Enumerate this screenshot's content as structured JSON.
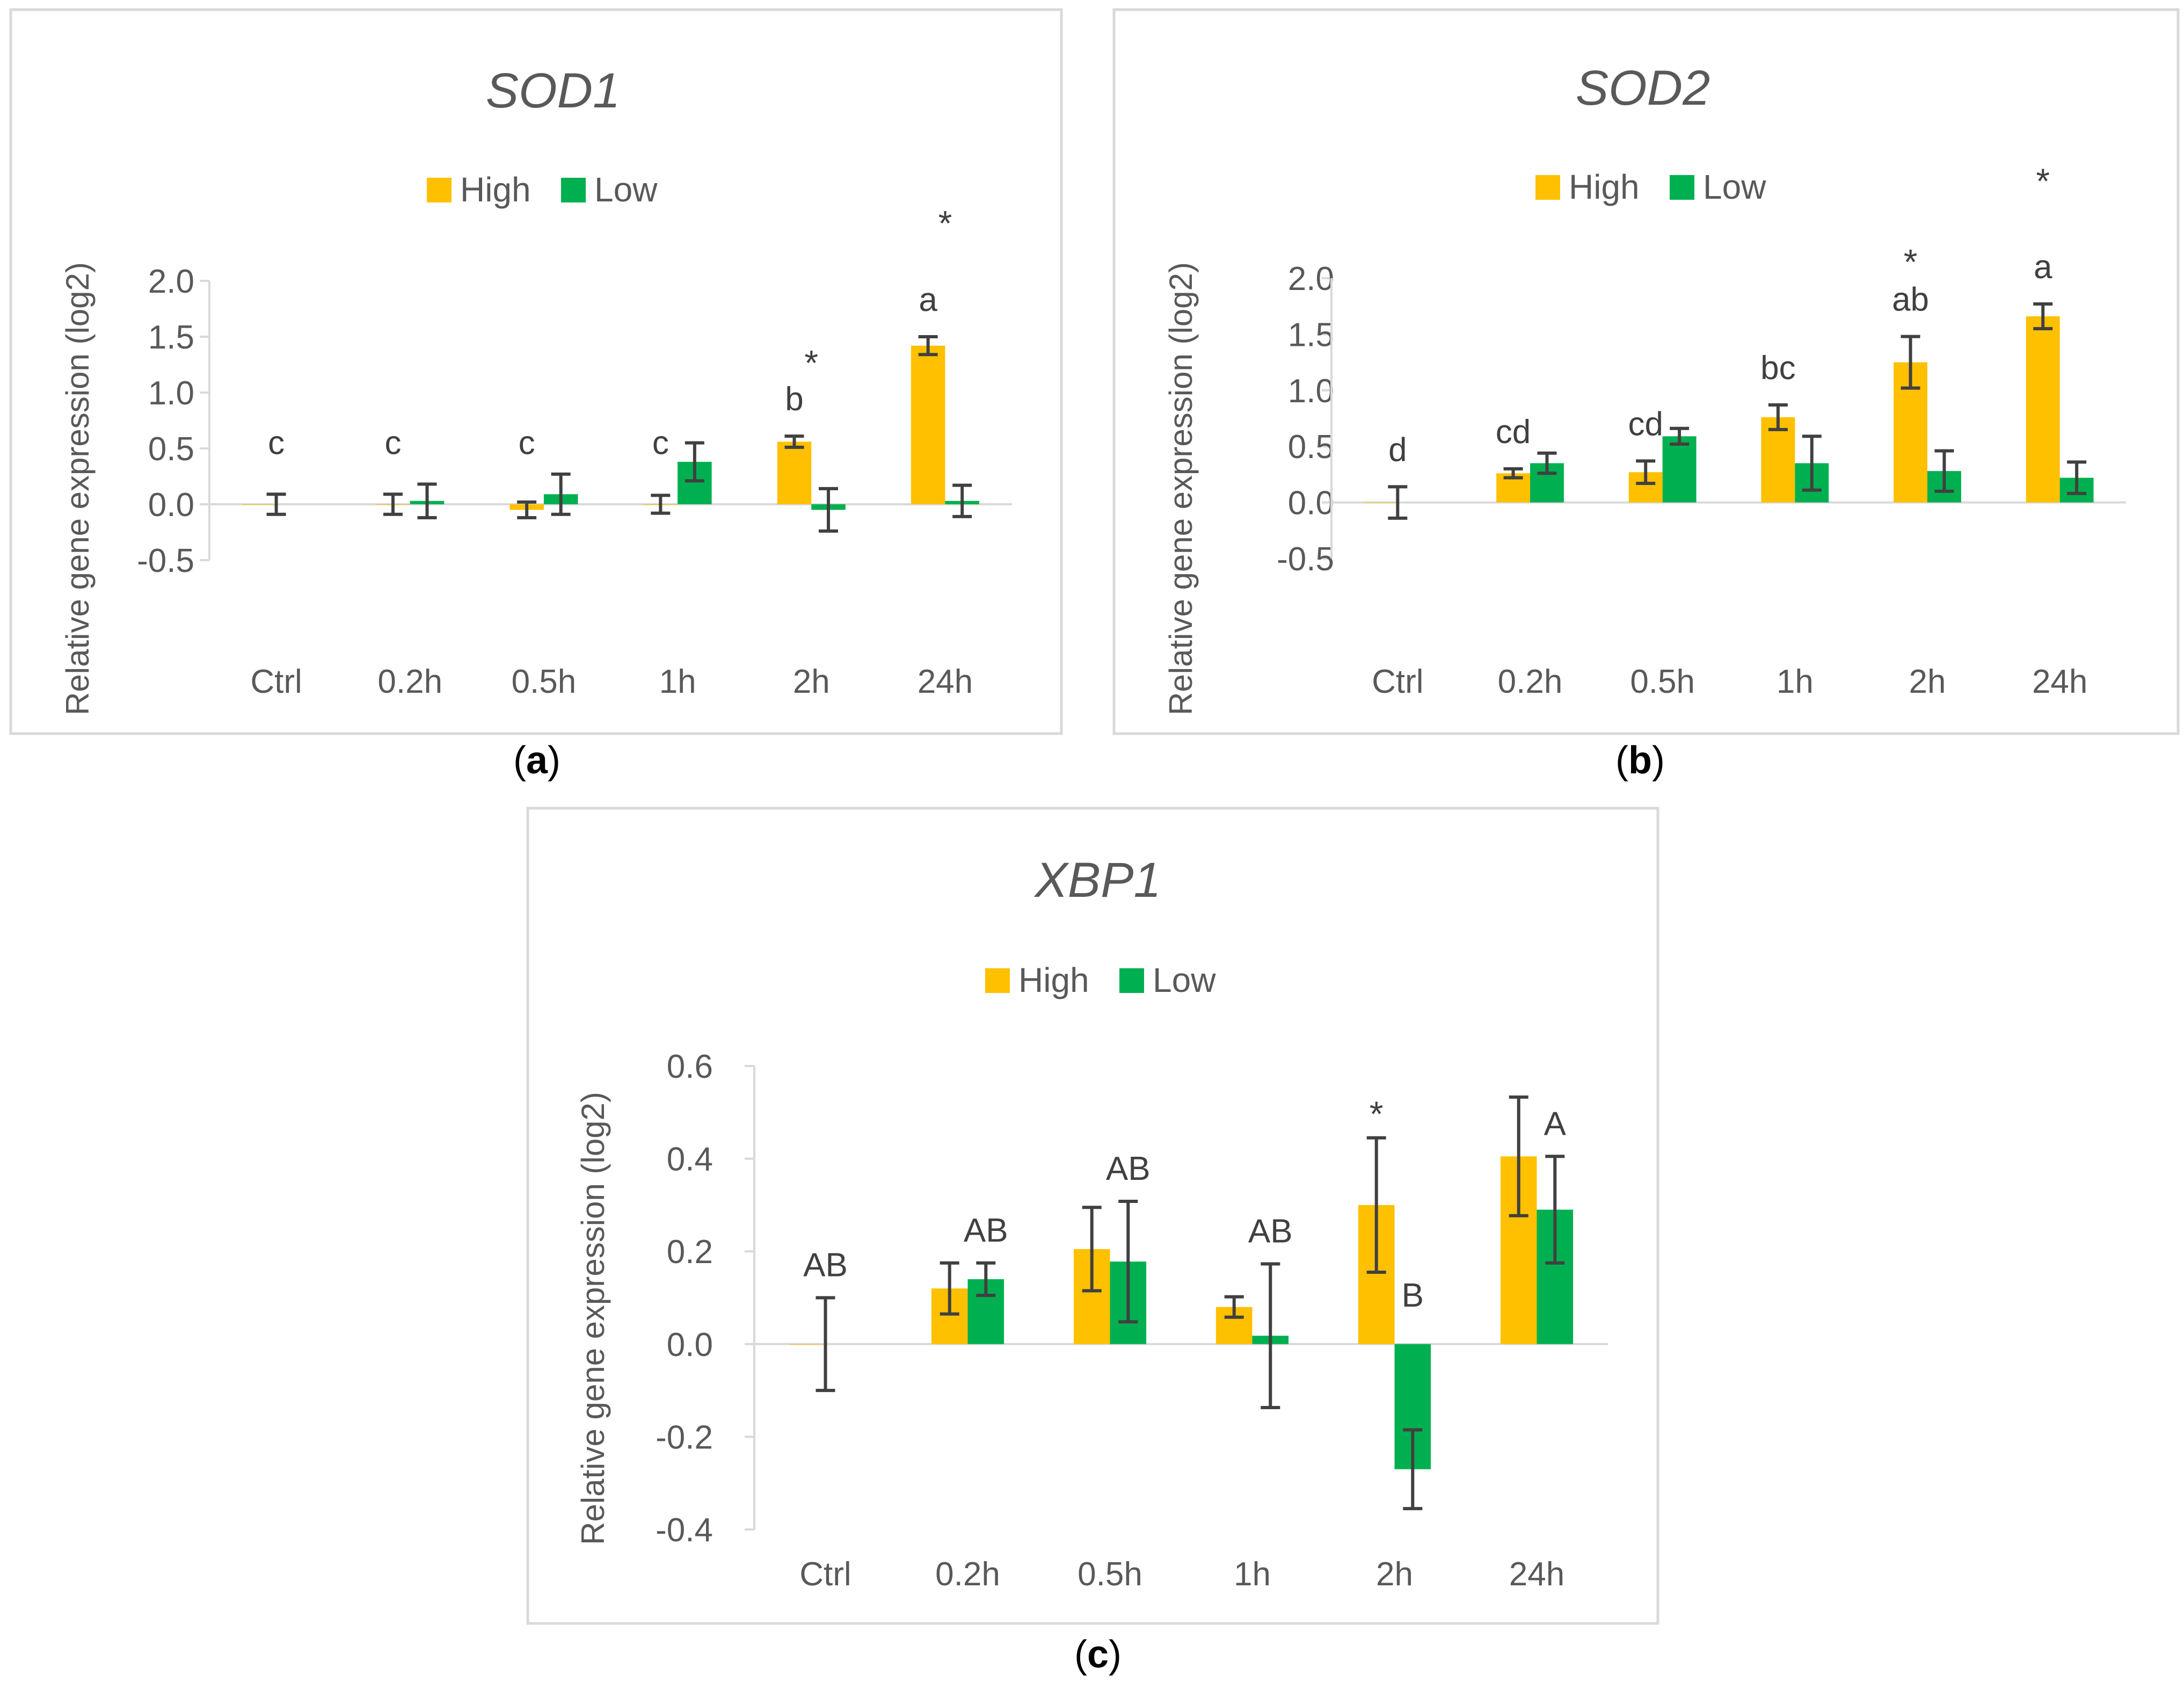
{
  "figure": {
    "colors": {
      "high": "#FFC000",
      "low": "#00B050",
      "error": "#404040",
      "axis": "#D9D9D9",
      "text": "#595959",
      "frame": "#D9D9D9"
    }
  },
  "chart_data": [
    {
      "type": "bar",
      "panel_label": "(a)",
      "title": "SOD1",
      "ylabel": "Relative gene expression (log2)",
      "xlabel": "",
      "ylim": [
        -0.5,
        2.0
      ],
      "yticks": [
        -0.5,
        0.0,
        0.5,
        1.0,
        1.5,
        2.0
      ],
      "ytick_labels": [
        "-0.5",
        "0.0",
        "0.5",
        "1.0",
        "1.5",
        "2.0"
      ],
      "legend_position": "top-center",
      "categories": [
        "Ctrl",
        "0.2h",
        "0.5h",
        "1h",
        "2h",
        "24h"
      ],
      "series": [
        {
          "name": "High",
          "values": [
            0.0,
            0.0,
            -0.05,
            0.0,
            0.56,
            1.42
          ],
          "errors": [
            0.09,
            0.09,
            0.07,
            0.08,
            0.05,
            0.08
          ]
        },
        {
          "name": "Low",
          "values": [
            null,
            0.03,
            0.09,
            0.38,
            -0.05,
            0.03
          ],
          "errors": [
            null,
            0.15,
            0.18,
            0.17,
            0.19,
            0.14
          ]
        }
      ],
      "letters": [
        "c",
        "c",
        "c",
        "c",
        "b",
        "a"
      ],
      "stars": [
        "",
        "",
        "",
        "",
        "*",
        "*"
      ]
    },
    {
      "type": "bar",
      "panel_label": "(b)",
      "title": "SOD2",
      "ylabel": "Relative gene expression (log2)",
      "xlabel": "",
      "ylim": [
        -0.5,
        2.0
      ],
      "yticks": [
        -0.5,
        0.0,
        0.5,
        1.0,
        1.5,
        2.0
      ],
      "ytick_labels": [
        "-0.5",
        "0.0",
        "0.5",
        "1.0",
        "1.5",
        "2.0"
      ],
      "legend_position": "top-center",
      "categories": [
        "Ctrl",
        "0.2h",
        "0.5h",
        "1h",
        "2h",
        "24h"
      ],
      "series": [
        {
          "name": "High",
          "values": [
            0.0,
            0.26,
            0.27,
            0.76,
            1.25,
            1.66
          ],
          "errors": [
            0.14,
            0.04,
            0.1,
            0.11,
            0.23,
            0.11
          ]
        },
        {
          "name": "Low",
          "values": [
            null,
            0.35,
            0.59,
            0.35,
            0.28,
            0.22
          ],
          "errors": [
            null,
            0.09,
            0.07,
            0.24,
            0.18,
            0.14
          ]
        }
      ],
      "letters": [
        "d",
        "cd",
        "cd",
        "bc",
        "ab",
        "a"
      ],
      "stars": [
        "",
        "",
        "",
        "",
        "*",
        "*"
      ]
    },
    {
      "type": "bar",
      "panel_label": "(c)",
      "title": "XBP1",
      "ylabel": "Relative gene expression (log2)",
      "xlabel": "",
      "ylim": [
        -0.4,
        0.6
      ],
      "yticks": [
        -0.4,
        -0.2,
        0.0,
        0.2,
        0.4,
        0.6
      ],
      "ytick_labels": [
        "-0.4",
        "-0.2",
        "0.0",
        "0.2",
        "0.4",
        "0.6"
      ],
      "legend_position": "top-center",
      "categories": [
        "Ctrl",
        "0.2h",
        "0.5h",
        "1h",
        "2h",
        "24h"
      ],
      "series": [
        {
          "name": "High",
          "values": [
            0.0,
            0.12,
            0.205,
            0.08,
            0.3,
            0.405
          ],
          "errors": [
            0.1,
            0.055,
            0.09,
            0.022,
            0.145,
            0.128
          ]
        },
        {
          "name": "Low",
          "values": [
            null,
            0.14,
            0.178,
            0.018,
            -0.27,
            0.29
          ],
          "errors": [
            null,
            0.035,
            0.13,
            0.155,
            0.085,
            0.115
          ]
        }
      ],
      "letters": [
        "AB",
        "AB",
        "AB",
        "AB",
        "B",
        "A"
      ],
      "stars": [
        "",
        "",
        "",
        "",
        "*",
        ""
      ]
    }
  ]
}
